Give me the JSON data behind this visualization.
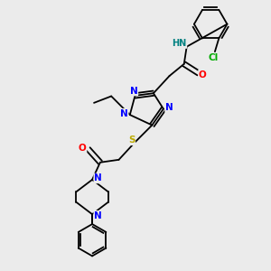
{
  "bg_color": "#ebebeb",
  "atom_colors": {
    "N": "#0000FF",
    "O": "#FF0000",
    "S": "#BBAA00",
    "Cl": "#00AA00",
    "C": "#000000",
    "H": "#008080"
  },
  "bond_color": "#000000",
  "font_size_atom": 7.5
}
